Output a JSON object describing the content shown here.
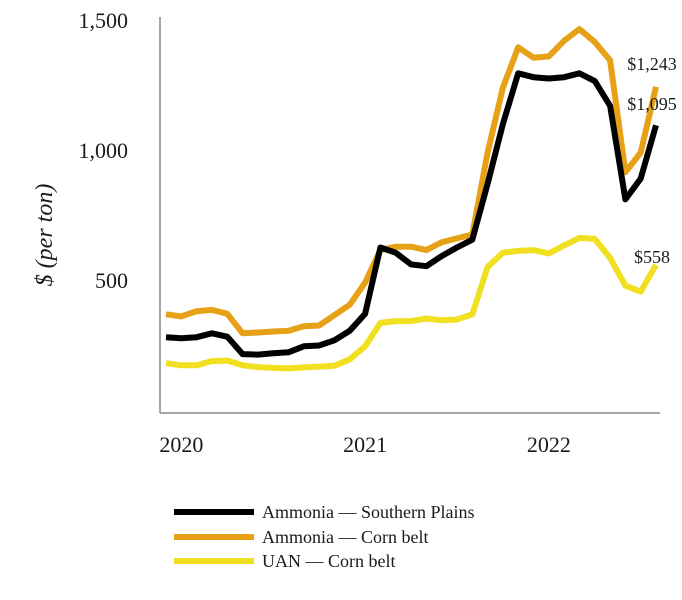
{
  "chart_data": {
    "type": "line",
    "title": "",
    "xlabel": "",
    "ylabel": "$ (per ton)",
    "ylim": [
      0,
      1500
    ],
    "yticks": [
      500,
      1000,
      1500
    ],
    "ytick_labels": [
      "500",
      "1,000",
      "1,500"
    ],
    "xticks": [
      {
        "label": "2020",
        "at": 1
      },
      {
        "label": "2021",
        "at": 13
      },
      {
        "label": "2022",
        "at": 25
      }
    ],
    "x": [
      0,
      1,
      2,
      3,
      4,
      5,
      6,
      7,
      8,
      9,
      10,
      11,
      12,
      13,
      14,
      15,
      16,
      17,
      18,
      19,
      20,
      21,
      22,
      23,
      24,
      25,
      26,
      27,
      28,
      29,
      30,
      31,
      32
    ],
    "series": [
      {
        "name": "Ammonia — Southern Plains",
        "color": "#000000",
        "values": [
          280,
          276,
          280,
          295,
          282,
          215,
          213,
          218,
          222,
          245,
          248,
          268,
          305,
          370,
          625,
          605,
          560,
          553,
          592,
          625,
          655,
          870,
          1100,
          1295,
          1280,
          1275,
          1280,
          1295,
          1265,
          1170,
          810,
          890,
          1095
        ],
        "end_label": "$1,095"
      },
      {
        "name": "Ammonia — Corn belt",
        "color": "#e6a117",
        "values": [
          368,
          360,
          380,
          385,
          370,
          295,
          298,
          302,
          305,
          322,
          325,
          365,
          405,
          490,
          615,
          628,
          628,
          615,
          645,
          660,
          675,
          990,
          1240,
          1395,
          1355,
          1360,
          1420,
          1465,
          1415,
          1345,
          915,
          990,
          1243
        ],
        "end_label": "$1,243"
      },
      {
        "name": "UAN — Corn belt",
        "color": "#f0e020",
        "values": [
          180,
          172,
          172,
          188,
          190,
          172,
          165,
          162,
          160,
          164,
          167,
          170,
          195,
          245,
          335,
          342,
          342,
          352,
          345,
          348,
          368,
          550,
          605,
          612,
          615,
          602,
          633,
          662,
          658,
          585,
          478,
          455,
          558
        ],
        "end_label": "$558"
      }
    ],
    "legend_position": "bottom-left"
  }
}
